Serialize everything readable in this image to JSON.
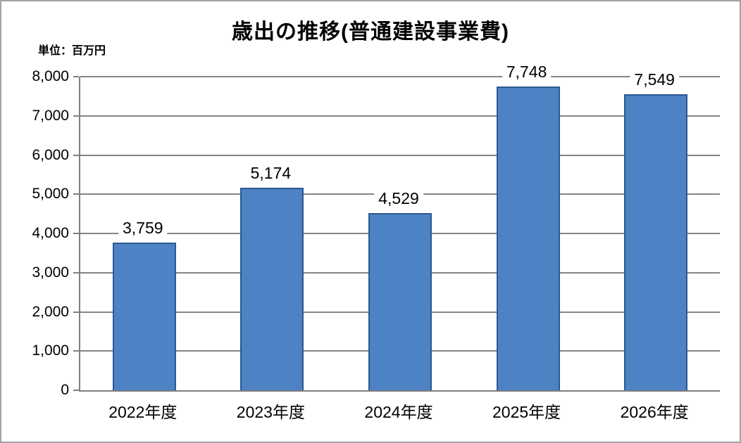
{
  "chart_data": {
    "type": "bar",
    "title": "歳出の推移(普通建設事業費)",
    "unit_label": "単位：百万円",
    "categories": [
      "2022年度",
      "2023年度",
      "2024年度",
      "2025年度",
      "2026年度"
    ],
    "values": [
      3759,
      5174,
      4529,
      7748,
      7549
    ],
    "data_labels": [
      "3,759",
      "5,174",
      "4,529",
      "7,748",
      "7,549"
    ],
    "y_ticks": [
      "0",
      "1,000",
      "2,000",
      "3,000",
      "4,000",
      "5,000",
      "6,000",
      "7,000",
      "8,000"
    ],
    "ylim": [
      0,
      8000
    ],
    "y_tick_step": 1000,
    "xlabel": "",
    "ylabel": "",
    "grid": true,
    "legend": "none",
    "colors": {
      "bar_fill": "#4d82c4",
      "bar_border": "#2c5991",
      "gridline": "#858585",
      "axis_line": "#808080",
      "text": "#000000",
      "frame_border": "#a3a3a3",
      "background": "#ffffff"
    }
  }
}
